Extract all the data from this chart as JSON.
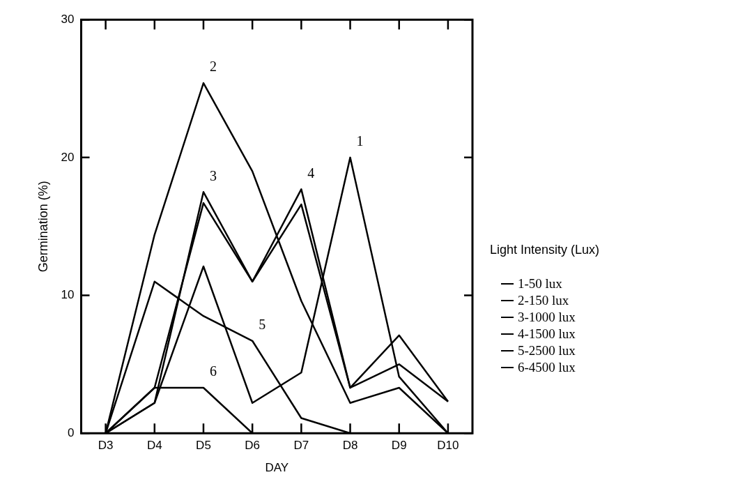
{
  "chart_data": {
    "type": "line",
    "xlabel": "DAY",
    "ylabel": "Germination (%)",
    "legend_title": "Light Intensity (Lux)",
    "categories": [
      "D3",
      "D4",
      "D5",
      "D6",
      "D7",
      "D8",
      "D9",
      "D10"
    ],
    "series": [
      {
        "name": "1-50 lux",
        "color": "#000000",
        "values": [
          0,
          2.2,
          12.1,
          2.2,
          4.4,
          20,
          4.1,
          0
        ]
      },
      {
        "name": "2-150 lux",
        "color": "#000000",
        "values": [
          0,
          14.4,
          25.4,
          19,
          9.6,
          2.2,
          3.3,
          0
        ]
      },
      {
        "name": "3-1000 lux",
        "color": "#000000",
        "values": [
          0,
          2.2,
          17.5,
          11,
          16.6,
          3.3,
          5.0,
          2.3
        ]
      },
      {
        "name": "4-1500 lux",
        "color": "#000000",
        "values": [
          0,
          3.3,
          16.7,
          11,
          17.7,
          3.3,
          7.1,
          2.3
        ]
      },
      {
        "name": "5-2500 lux",
        "color": "#000000",
        "values": [
          0,
          11,
          8.5,
          6.7,
          1.1,
          0,
          null,
          null
        ]
      },
      {
        "name": "6-4500 lux",
        "color": "#000000",
        "values": [
          0,
          3.3,
          3.3,
          0,
          null,
          null,
          null,
          null
        ]
      }
    ],
    "annotations": [
      {
        "text": "1",
        "x": "D8",
        "y": 20
      },
      {
        "text": "2",
        "x": "D5",
        "y": 25.4
      },
      {
        "text": "3",
        "x": "D5",
        "y": 17.5
      },
      {
        "text": "4",
        "x": "D7",
        "y": 17.7
      },
      {
        "text": "5",
        "x": "D6",
        "y": 6.7
      },
      {
        "text": "6",
        "x": "D5",
        "y": 3.3
      }
    ],
    "ylim": [
      0,
      30
    ],
    "yticks": [
      0,
      10,
      20,
      30
    ],
    "grid": false,
    "legend": "right",
    "marker": "none",
    "line_style": "solid"
  }
}
